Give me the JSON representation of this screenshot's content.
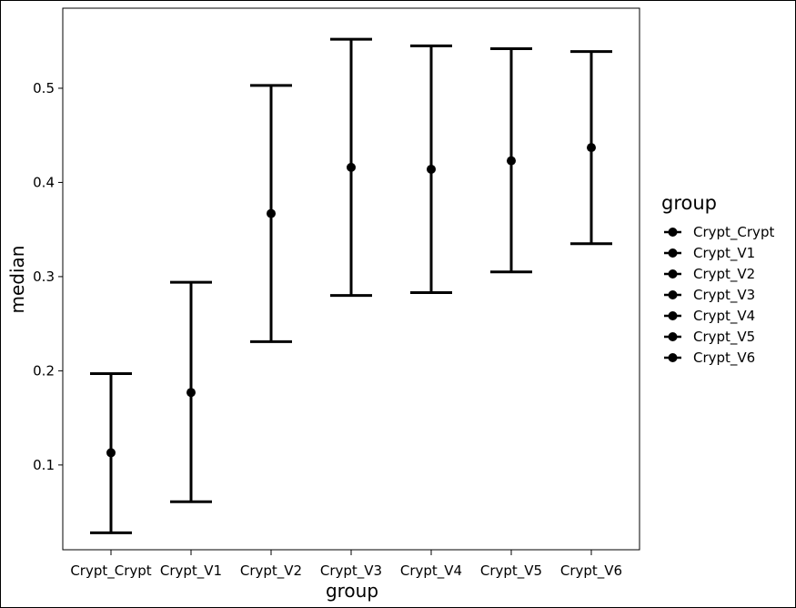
{
  "chart_data": {
    "type": "scatter",
    "subtype": "point-with-errorbars",
    "title": "",
    "xlabel": "group",
    "ylabel": "median",
    "categories": [
      "Crypt_Crypt",
      "Crypt_V1",
      "Crypt_V2",
      "Crypt_V3",
      "Crypt_V4",
      "Crypt_V5",
      "Crypt_V6"
    ],
    "median": [
      0.113,
      0.177,
      0.367,
      0.416,
      0.414,
      0.423,
      0.437
    ],
    "lower": [
      0.028,
      0.061,
      0.231,
      0.28,
      0.283,
      0.305,
      0.335
    ],
    "upper": [
      0.197,
      0.294,
      0.503,
      0.552,
      0.545,
      0.542,
      0.539
    ],
    "ylim": [
      0.01,
      0.585
    ],
    "yticks": [
      0.1,
      0.2,
      0.3,
      0.4,
      0.5
    ],
    "ytick_labels": [
      "0.1",
      "0.2",
      "0.3",
      "0.4",
      "0.5"
    ],
    "grid": false,
    "color": "#000000",
    "legend": {
      "title": "group",
      "position": "right",
      "entries": [
        "Crypt_Crypt",
        "Crypt_V1",
        "Crypt_V2",
        "Crypt_V3",
        "Crypt_V4",
        "Crypt_V5",
        "Crypt_V6"
      ]
    }
  }
}
